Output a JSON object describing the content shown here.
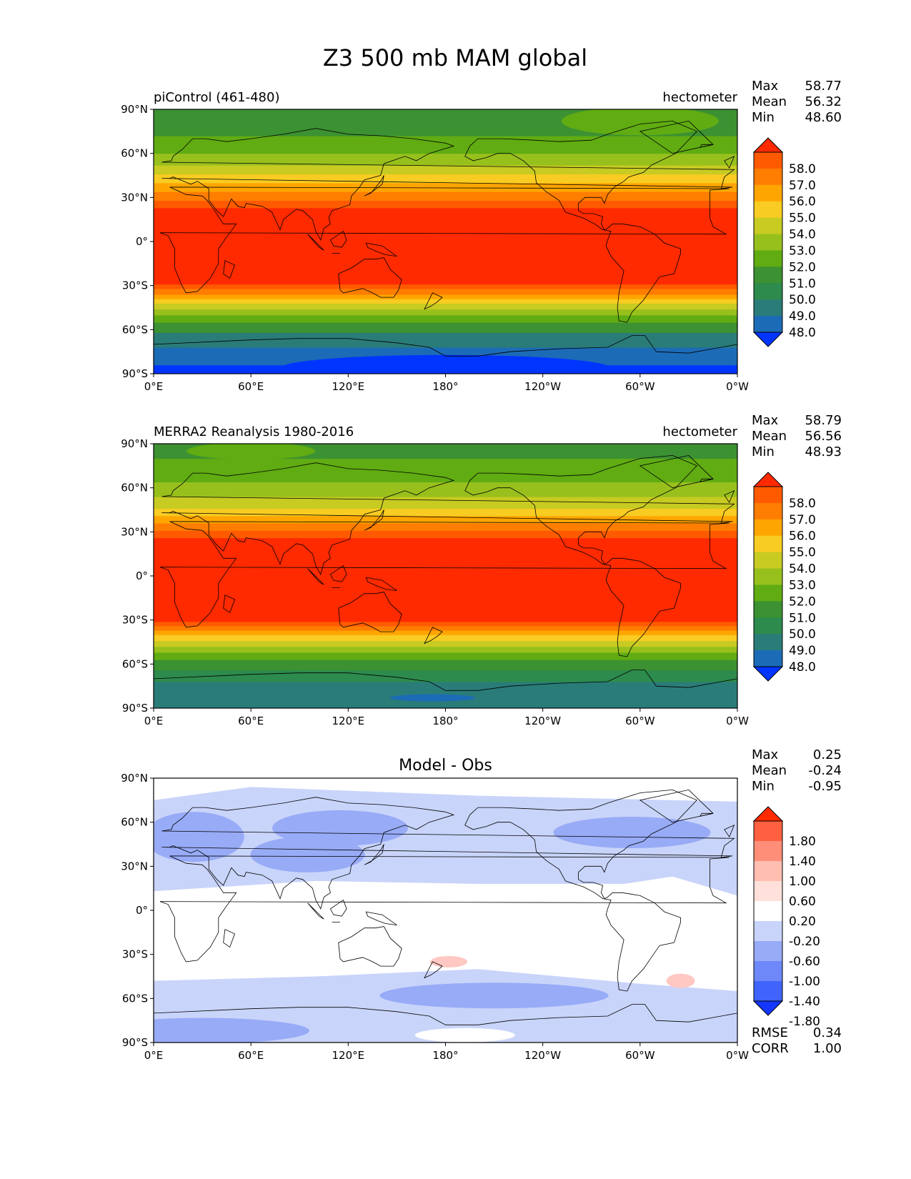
{
  "figure": {
    "title": "Z3 500 mb MAM global"
  },
  "x_ticks": [
    "0°E",
    "60°E",
    "120°E",
    "180°",
    "120°W",
    "60°W",
    "0°W"
  ],
  "y_ticks": [
    "90°N",
    "60°N",
    "30°N",
    "0°",
    "30°S",
    "60°S",
    "90°S"
  ],
  "panels": [
    {
      "left_title": "piControl (461-480)",
      "center_title": "",
      "right_title": "hectometer",
      "stats": [
        {
          "label": "Max",
          "value": "58.77"
        },
        {
          "label": "Mean",
          "value": "56.32"
        },
        {
          "label": "Min",
          "value": "48.60"
        }
      ],
      "colorbar": {
        "labels": [
          "58.0",
          "57.0",
          "56.0",
          "55.0",
          "54.0",
          "53.0",
          "52.0",
          "51.0",
          "50.0",
          "49.0",
          "48.0"
        ],
        "colors": [
          "#ff2a00",
          "#ff5a00",
          "#ff7d00",
          "#ffa500",
          "#f8cc22",
          "#c8cb22",
          "#98c01d",
          "#60ac12",
          "#3c9132",
          "#2d8b4d",
          "#2a7c79",
          "#1c6bb6",
          "#0035ff"
        ]
      },
      "footer": []
    },
    {
      "left_title": "MERRA2 Reanalysis 1980-2016",
      "center_title": "",
      "right_title": "hectometer",
      "stats": [
        {
          "label": "Max",
          "value": "58.79"
        },
        {
          "label": "Mean",
          "value": "56.56"
        },
        {
          "label": "Min",
          "value": "48.93"
        }
      ],
      "colorbar": {
        "labels": [
          "58.0",
          "57.0",
          "56.0",
          "55.0",
          "54.0",
          "53.0",
          "52.0",
          "51.0",
          "50.0",
          "49.0",
          "48.0"
        ],
        "colors": [
          "#ff2a00",
          "#ff5a00",
          "#ff7d00",
          "#ffa500",
          "#f8cc22",
          "#c8cb22",
          "#98c01d",
          "#60ac12",
          "#3c9132",
          "#2d8b4d",
          "#2a7c79",
          "#1c6bb6",
          "#0035ff"
        ]
      },
      "footer": []
    },
    {
      "left_title": "",
      "center_title": "Model - Obs",
      "right_title": "",
      "stats": [
        {
          "label": "Max",
          "value": "0.25"
        },
        {
          "label": "Mean",
          "value": "-0.24"
        },
        {
          "label": "Min",
          "value": "-0.95"
        }
      ],
      "colorbar": {
        "labels": [
          "1.80",
          "1.40",
          "1.00",
          "0.60",
          "0.20",
          "-0.20",
          "-0.60",
          "-1.00",
          "-1.40",
          "-1.80"
        ],
        "colors": [
          "#ff2a00",
          "#ff6040",
          "#ff8e78",
          "#ffbeb0",
          "#ffe0da",
          "#ffffff",
          "#c9d4fa",
          "#98abf7",
          "#6e88f9",
          "#4064fb",
          "#1437ff"
        ]
      },
      "footer": [
        {
          "label": "RMSE",
          "value": "0.34"
        },
        {
          "label": "CORR",
          "value": "1.00"
        }
      ]
    }
  ],
  "field_colors": {
    "full": [
      "#0035ff",
      "#1c6bb6",
      "#2a7c79",
      "#2d8b4d",
      "#3c9132",
      "#60ac12",
      "#98c01d",
      "#c8cb22",
      "#f8cc22",
      "#ffa500",
      "#ff7d00",
      "#ff5a00",
      "#ff2a00"
    ],
    "diff_light_blue": "#c9d4fa",
    "diff_mid_blue": "#98abf7",
    "diff_pink": "#ffc8c2",
    "coast": "#000000"
  }
}
